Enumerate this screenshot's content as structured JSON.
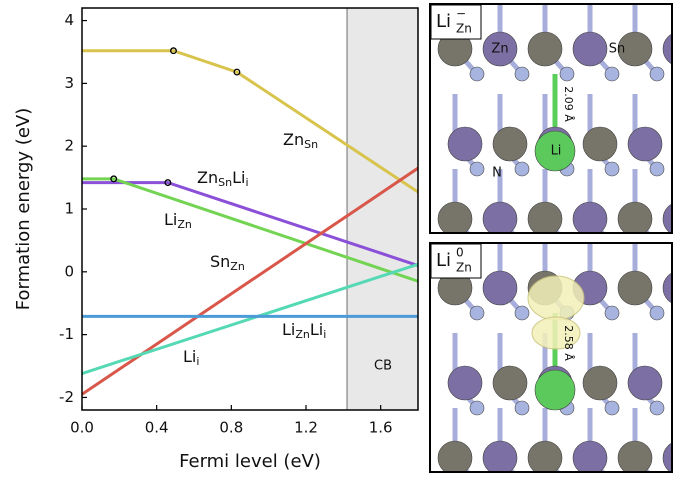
{
  "chart_data": {
    "type": "line",
    "xlabel": "Fermi level (eV)",
    "ylabel": "Formation energy (eV)",
    "xlim": [
      0,
      1.8
    ],
    "ylim": [
      -2.2,
      4.2
    ],
    "xticks": [
      {
        "value": 0,
        "label": "0.0"
      },
      0.4,
      0.8,
      1.2,
      1.6
    ],
    "yticks": [
      -2,
      -1,
      0,
      1,
      2,
      3,
      4
    ],
    "shaded_region": {
      "x": [
        1.42,
        1.8
      ],
      "label": "CB",
      "color": "#e8e8e8"
    },
    "series": [
      {
        "label": [
          {
            "text": "Zn"
          },
          {
            "text": "Sn",
            "sub": true
          }
        ],
        "color": "#d8c44c",
        "x": [
          0,
          0.49,
          0.83,
          1.8
        ],
        "values": [
          3.52,
          3.52,
          3.18,
          1.27
        ],
        "markers": {
          "x": [
            0.49,
            0.83
          ],
          "y": [
            3.52,
            3.18
          ]
        }
      },
      {
        "label": [
          {
            "text": "Zn"
          },
          {
            "text": "Sn",
            "sub": true
          },
          {
            "text": "Li"
          },
          {
            "text": "i",
            "sub": true
          }
        ],
        "color": "#8b4fd8",
        "x": [
          0,
          0.46,
          1.8
        ],
        "values": [
          1.42,
          1.42,
          0.1
        ],
        "markers": {
          "x": [
            0.46
          ],
          "y": [
            1.42
          ]
        }
      },
      {
        "label": [
          {
            "text": "Li"
          },
          {
            "text": "Zn",
            "sub": true
          }
        ],
        "color": "#72d452",
        "x": [
          0,
          0.17,
          1.8
        ],
        "values": [
          1.48,
          1.48,
          -0.15
        ],
        "markers": {
          "x": [
            0.17
          ],
          "y": [
            1.48
          ]
        }
      },
      {
        "label": [
          {
            "text": "Sn"
          },
          {
            "text": "Zn",
            "sub": true
          }
        ],
        "color": "#d9574a",
        "x": [
          0,
          1.8
        ],
        "values": [
          -1.95,
          1.65
        ]
      },
      {
        "label": [
          {
            "text": "Li"
          },
          {
            "text": "i",
            "sub": true
          }
        ],
        "color": "#55d9b4",
        "x": [
          0,
          1.8
        ],
        "values": [
          -1.62,
          0.12
        ]
      },
      {
        "label": [
          {
            "text": "Li"
          },
          {
            "text": "Zn",
            "sub": true
          },
          {
            "text": "Li"
          },
          {
            "text": "i",
            "sub": true
          }
        ],
        "color": "#4a9bd8",
        "x": [
          0,
          1.8
        ],
        "values": [
          -0.71,
          -0.71
        ]
      }
    ]
  },
  "panels": [
    {
      "title": {
        "base": "Li",
        "sub": "Zn",
        "sup": "−"
      },
      "atoms": [
        "Zn",
        "Sn",
        "Li",
        "N"
      ],
      "distance": "2.09 Å"
    },
    {
      "title": {
        "base": "Li",
        "sub": "Zn",
        "sup": "0"
      },
      "distance": "2.58 Å"
    }
  ]
}
